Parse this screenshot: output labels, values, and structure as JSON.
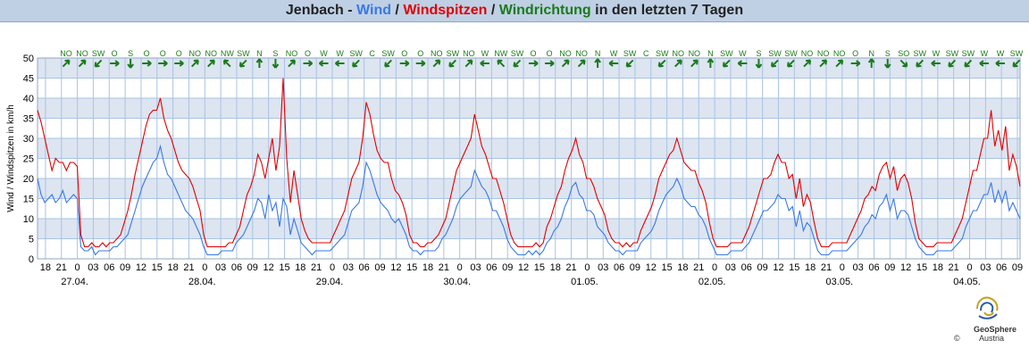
{
  "title": {
    "station": "Jenbach",
    "sep1": " - ",
    "wind": "Wind",
    "sep2": " / ",
    "gusts": "Windspitzen",
    "sep3": " / ",
    "direction": "Windrichtung",
    "suffix": " in den letzten 7 Tagen"
  },
  "colors": {
    "wind": "#3a78e6",
    "gusts": "#e00000",
    "direction": "#1a7a1a",
    "band": "#dde5f1",
    "grid": "#a9c3e3",
    "axis": "#333333",
    "title_bg": "#bfd0e4"
  },
  "chart_data": {
    "type": "line",
    "title": "Jenbach - Wind / Windspitzen / Windrichtung in den letzten 7 Tagen",
    "ylabel": "Wind / Windspitzen in km/h",
    "xlabel": "",
    "ylim": [
      0,
      50
    ],
    "yticks": [
      "0",
      "5",
      "10",
      "15",
      "20",
      "25",
      "30",
      "35",
      "40",
      "45",
      "50"
    ],
    "x_start_hour": 16.5,
    "x_span_hours": 185,
    "xtick_labels": [
      "18",
      "21",
      "0",
      "03",
      "06",
      "09",
      "12",
      "15",
      "18",
      "21",
      "0",
      "03",
      "06",
      "09",
      "12",
      "15",
      "18",
      "21",
      "0",
      "03",
      "06",
      "09",
      "12",
      "15",
      "18",
      "21",
      "0",
      "03",
      "06",
      "09",
      "12",
      "15",
      "18",
      "21",
      "0",
      "03",
      "06",
      "09",
      "12",
      "15",
      "18",
      "21",
      "0",
      "03",
      "06",
      "09",
      "12",
      "15",
      "18",
      "21",
      "0",
      "03",
      "06",
      "09",
      "12",
      "15",
      "18",
      "21",
      "0",
      "03",
      "06",
      "09"
    ],
    "date_labels": [
      "27.04.",
      "28.04.",
      "29.04.",
      "30.04.",
      "01.05.",
      "02.05.",
      "03.05.",
      "04.05."
    ],
    "grid": true,
    "series": [
      {
        "name": "Wind",
        "color": "#3a78e6",
        "values": [
          20,
          16,
          14,
          15,
          16,
          14,
          15,
          17,
          14,
          15,
          16,
          15,
          3,
          2,
          2,
          3,
          1,
          2,
          2,
          2,
          2,
          3,
          3,
          4,
          5,
          6,
          9,
          12,
          15,
          18,
          20,
          22,
          24,
          25,
          28,
          24,
          21,
          20,
          18,
          16,
          14,
          12,
          11,
          10,
          8,
          6,
          3,
          1,
          1,
          1,
          1,
          2,
          2,
          2,
          2,
          4,
          5,
          6,
          8,
          10,
          12,
          15,
          14,
          10,
          16,
          12,
          14,
          8,
          15,
          13,
          6,
          10,
          7,
          4,
          3,
          2,
          1,
          2,
          2,
          2,
          2,
          2,
          3,
          4,
          5,
          6,
          9,
          12,
          13,
          14,
          18,
          24,
          22,
          19,
          16,
          14,
          13,
          12,
          10,
          9,
          10,
          8,
          6,
          3,
          2,
          2,
          1,
          2,
          2,
          2,
          2,
          3,
          5,
          6,
          8,
          10,
          13,
          15,
          16,
          17,
          18,
          22,
          20,
          18,
          17,
          15,
          12,
          12,
          10,
          8,
          5,
          3,
          2,
          1,
          1,
          1,
          2,
          1,
          2,
          1,
          2,
          4,
          5,
          7,
          8,
          10,
          13,
          15,
          18,
          19,
          16,
          15,
          12,
          12,
          11,
          8,
          7,
          6,
          4,
          3,
          2,
          2,
          1,
          2,
          2,
          2,
          2,
          4,
          5,
          6,
          7,
          9,
          12,
          14,
          16,
          17,
          18,
          20,
          18,
          15,
          14,
          13,
          13,
          11,
          10,
          8,
          5,
          3,
          1,
          1,
          1,
          1,
          2,
          2,
          2,
          2,
          3,
          4,
          6,
          8,
          10,
          12,
          12,
          13,
          14,
          16,
          15,
          15,
          12,
          13,
          8,
          12,
          7,
          9,
          8,
          5,
          2,
          1,
          1,
          1,
          2,
          2,
          2,
          2,
          2,
          3,
          4,
          5,
          6,
          8,
          9,
          11,
          10,
          13,
          14,
          16,
          12,
          15,
          10,
          12,
          12,
          11,
          8,
          5,
          3,
          2,
          1,
          1,
          1,
          2,
          2,
          2,
          2,
          2,
          3,
          4,
          5,
          8,
          10,
          12,
          12,
          14,
          16,
          16,
          19,
          14,
          17,
          14,
          17,
          12,
          14,
          12,
          10
        ]
      },
      {
        "name": "Windspitzen",
        "color": "#e00000",
        "values": [
          37,
          34,
          30,
          26,
          22,
          25,
          24,
          24,
          22,
          24,
          24,
          23,
          6,
          3,
          3,
          4,
          3,
          3,
          4,
          3,
          4,
          4,
          5,
          6,
          9,
          12,
          16,
          21,
          25,
          29,
          33,
          36,
          37,
          37,
          40,
          35,
          32,
          30,
          27,
          24,
          22,
          21,
          20,
          18,
          15,
          12,
          6,
          3,
          3,
          3,
          3,
          3,
          3,
          4,
          4,
          6,
          8,
          12,
          16,
          18,
          21,
          26,
          24,
          20,
          25,
          30,
          22,
          28,
          45,
          25,
          14,
          22,
          16,
          10,
          7,
          5,
          4,
          4,
          4,
          4,
          4,
          4,
          6,
          8,
          10,
          12,
          16,
          20,
          22,
          24,
          30,
          39,
          36,
          31,
          27,
          25,
          24,
          24,
          20,
          17,
          16,
          14,
          11,
          6,
          4,
          4,
          3,
          3,
          4,
          4,
          5,
          6,
          8,
          10,
          14,
          18,
          22,
          24,
          26,
          28,
          30,
          36,
          32,
          28,
          26,
          23,
          20,
          20,
          17,
          14,
          10,
          6,
          4,
          3,
          3,
          3,
          3,
          3,
          4,
          3,
          4,
          8,
          10,
          13,
          16,
          18,
          22,
          25,
          27,
          30,
          26,
          24,
          20,
          20,
          18,
          15,
          13,
          11,
          7,
          5,
          4,
          4,
          3,
          4,
          3,
          4,
          4,
          7,
          9,
          11,
          13,
          16,
          20,
          22,
          24,
          26,
          27,
          30,
          27,
          24,
          23,
          22,
          22,
          19,
          17,
          14,
          9,
          5,
          3,
          3,
          3,
          3,
          4,
          4,
          4,
          4,
          6,
          8,
          11,
          14,
          17,
          20,
          20,
          21,
          24,
          26,
          24,
          24,
          20,
          21,
          15,
          20,
          13,
          16,
          14,
          9,
          5,
          3,
          3,
          3,
          4,
          4,
          4,
          4,
          4,
          6,
          8,
          10,
          12,
          15,
          16,
          18,
          17,
          21,
          23,
          24,
          20,
          23,
          17,
          20,
          21,
          19,
          15,
          9,
          5,
          4,
          3,
          3,
          3,
          4,
          4,
          4,
          4,
          4,
          6,
          8,
          10,
          14,
          18,
          22,
          22,
          26,
          30,
          30,
          37,
          28,
          32,
          27,
          33,
          22,
          26,
          23,
          18
        ]
      }
    ],
    "directions": [
      "NO",
      "NO",
      "SW",
      "O",
      "S",
      "O",
      "O",
      "O",
      "NO",
      "NO",
      "NW",
      "SW",
      "N",
      "S",
      "NO",
      "O",
      "W",
      "W",
      "SW",
      "C",
      "SW",
      "O",
      "O",
      "NO",
      "SW",
      "NO",
      "W",
      "NW",
      "SW",
      "O",
      "O",
      "NO",
      "NO",
      "N",
      "W",
      "SW",
      "C",
      "SW",
      "NO",
      "NO",
      "N",
      "SW",
      "W",
      "S",
      "SW",
      "SW",
      "NO",
      "NO",
      "NO",
      "O",
      "N",
      "S",
      "SO",
      "SW",
      "W",
      "SW",
      "SW",
      "W",
      "W",
      "SW"
    ]
  },
  "logo": {
    "line1": "GeoSphere",
    "line2": "Austria",
    "copyright": "©"
  }
}
